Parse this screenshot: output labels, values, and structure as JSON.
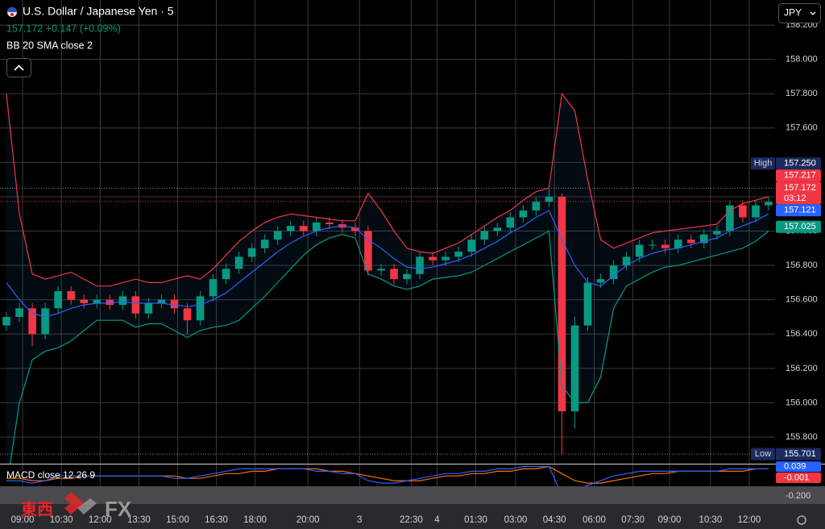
{
  "chart_data": {
    "type": "candlestick",
    "title": "U.S. Dollar / Japanese Yen · 5",
    "subtitle": "157.172 +0.147 (+0.09%)",
    "indicator": "BB 20 SMA close 2",
    "currency": "JPY",
    "watermark": [
      "東西",
      "FX"
    ],
    "colors": {
      "up": "#089981",
      "down": "#f23645"
    },
    "x": [
      3,
      9,
      15,
      21,
      27,
      33,
      39,
      45,
      51,
      57,
      63,
      69,
      75,
      81,
      87,
      93,
      99,
      105,
      111,
      117,
      123,
      129,
      135,
      141,
      147,
      153,
      159,
      165,
      171,
      177,
      183,
      189,
      195,
      201,
      207,
      213,
      219,
      225,
      231,
      237,
      243,
      249,
      255,
      261,
      267,
      273,
      279,
      285,
      291,
      297,
      303,
      309,
      315,
      321,
      327,
      333,
      339,
      345,
      351,
      357
    ],
    "open": [
      156.45,
      156.5,
      156.55,
      156.4,
      156.55,
      156.65,
      156.6,
      156.58,
      156.6,
      156.57,
      156.62,
      156.52,
      156.58,
      156.6,
      156.55,
      156.48,
      156.62,
      156.72,
      156.78,
      156.85,
      156.9,
      156.95,
      157.0,
      157.03,
      157.0,
      157.05,
      157.04,
      157.02,
      157.0,
      156.77,
      156.78,
      156.72,
      156.75,
      156.85,
      156.83,
      156.85,
      156.88,
      156.95,
      157.0,
      157.02,
      157.08,
      157.12,
      157.17,
      157.2,
      155.95,
      156.45,
      156.7,
      156.72,
      156.8,
      156.85,
      156.92,
      156.92,
      156.9,
      156.95,
      156.93,
      156.98,
      157.0,
      157.15,
      157.08,
      157.15
    ],
    "high": [
      156.53,
      156.58,
      156.58,
      156.58,
      156.68,
      156.68,
      156.63,
      156.63,
      156.63,
      156.65,
      156.65,
      156.61,
      156.63,
      156.63,
      156.58,
      156.65,
      156.75,
      156.81,
      156.88,
      156.93,
      156.98,
      157.03,
      157.06,
      157.06,
      157.08,
      157.08,
      157.07,
      157.05,
      157.03,
      156.81,
      156.81,
      156.78,
      156.88,
      156.88,
      156.88,
      156.91,
      156.98,
      157.03,
      157.05,
      157.11,
      157.15,
      157.2,
      157.25,
      157.22,
      156.5,
      156.73,
      156.75,
      156.83,
      156.88,
      156.95,
      156.95,
      156.95,
      156.98,
      156.98,
      157.01,
      157.03,
      157.18,
      157.18,
      157.18,
      157.2
    ],
    "low": [
      156.42,
      156.47,
      156.33,
      156.37,
      156.52,
      156.57,
      156.55,
      156.55,
      156.54,
      156.54,
      156.49,
      156.49,
      156.55,
      156.52,
      156.4,
      156.45,
      156.59,
      156.69,
      156.75,
      156.82,
      156.87,
      156.92,
      156.97,
      156.97,
      156.97,
      157.01,
      156.99,
      156.97,
      156.74,
      156.74,
      156.69,
      156.69,
      156.72,
      156.8,
      156.8,
      156.82,
      156.85,
      156.92,
      156.97,
      156.99,
      157.05,
      157.09,
      157.14,
      155.7,
      155.85,
      156.42,
      156.67,
      156.69,
      156.77,
      156.82,
      156.89,
      156.87,
      156.87,
      156.9,
      156.9,
      156.95,
      156.97,
      157.05,
      157.05,
      157.12
    ],
    "close": [
      156.5,
      156.55,
      156.4,
      156.55,
      156.65,
      156.6,
      156.58,
      156.6,
      156.57,
      156.62,
      156.52,
      156.58,
      156.6,
      156.55,
      156.48,
      156.62,
      156.72,
      156.78,
      156.85,
      156.9,
      156.95,
      157.0,
      157.03,
      157.0,
      157.05,
      157.04,
      157.02,
      157.0,
      156.77,
      156.78,
      156.72,
      156.75,
      156.85,
      156.83,
      156.85,
      156.88,
      156.95,
      157.0,
      157.02,
      157.08,
      157.12,
      157.17,
      157.2,
      155.95,
      156.45,
      156.7,
      156.72,
      156.8,
      156.85,
      156.92,
      156.92,
      156.9,
      156.95,
      156.93,
      156.98,
      157.0,
      157.15,
      157.08,
      157.15,
      157.17
    ],
    "bands": {
      "colors": {
        "upper": "#f23645",
        "middle": "#2962ff",
        "lower": "#089981",
        "fill": "#2196f3"
      },
      "upper": [
        157.8,
        157.1,
        156.75,
        156.72,
        156.74,
        156.76,
        156.72,
        156.68,
        156.68,
        156.7,
        156.72,
        156.7,
        156.7,
        156.72,
        156.74,
        156.72,
        156.78,
        156.86,
        156.94,
        157.0,
        157.05,
        157.08,
        157.1,
        157.09,
        157.08,
        157.07,
        157.06,
        157.06,
        157.22,
        157.12,
        157.0,
        156.9,
        156.88,
        156.87,
        156.9,
        156.93,
        156.98,
        157.03,
        157.08,
        157.12,
        157.18,
        157.23,
        157.25,
        157.8,
        157.7,
        157.3,
        156.95,
        156.9,
        156.93,
        156.96,
        156.99,
        157.0,
        157.01,
        157.02,
        157.03,
        157.04,
        157.12,
        157.16,
        157.18,
        157.2
      ],
      "middle": [
        156.7,
        156.6,
        156.52,
        156.5,
        156.52,
        156.55,
        156.57,
        156.58,
        156.58,
        156.59,
        156.58,
        156.58,
        156.58,
        156.57,
        156.56,
        156.57,
        156.6,
        156.64,
        156.7,
        156.76,
        156.82,
        156.88,
        156.93,
        156.97,
        157.0,
        157.02,
        157.03,
        157.02,
        156.95,
        156.9,
        156.84,
        156.79,
        156.78,
        156.79,
        156.81,
        156.83,
        156.86,
        156.9,
        156.94,
        156.99,
        157.03,
        157.08,
        157.12,
        156.95,
        156.8,
        156.7,
        156.68,
        156.74,
        156.8,
        156.84,
        156.87,
        156.89,
        156.9,
        156.92,
        156.94,
        156.96,
        157.0,
        157.03,
        157.06,
        157.1
      ],
      "lower": [
        155.5,
        156.0,
        156.25,
        156.3,
        156.32,
        156.36,
        156.42,
        156.48,
        156.48,
        156.48,
        156.44,
        156.46,
        156.46,
        156.42,
        156.38,
        156.42,
        156.44,
        156.45,
        156.48,
        156.55,
        156.62,
        156.7,
        156.78,
        156.86,
        156.92,
        156.96,
        156.98,
        156.96,
        156.75,
        156.72,
        156.68,
        156.66,
        156.68,
        156.72,
        156.73,
        156.74,
        156.76,
        156.8,
        156.84,
        156.88,
        156.92,
        156.96,
        157.0,
        156.1,
        156.0,
        156.0,
        156.15,
        156.55,
        156.68,
        156.72,
        156.76,
        156.79,
        156.8,
        156.82,
        156.84,
        156.86,
        156.88,
        156.9,
        156.94,
        157.0
      ]
    },
    "xlim": [
      0,
      360
    ],
    "xticks": [
      {
        "value": 10.5,
        "label": "09:00"
      },
      {
        "value": 28.5,
        "label": "10:30"
      },
      {
        "value": 46.5,
        "label": "12:00"
      },
      {
        "value": 64.5,
        "label": "13:30"
      },
      {
        "value": 82.5,
        "label": "15:00"
      },
      {
        "value": 100.5,
        "label": "16:30"
      },
      {
        "value": 118.5,
        "label": "18:00"
      },
      {
        "value": 143,
        "label": "20:00"
      },
      {
        "value": 167,
        "label": "3"
      },
      {
        "value": 191,
        "label": "22:30"
      },
      {
        "value": 203,
        "label": "4"
      },
      {
        "value": 221,
        "label": "01:30"
      },
      {
        "value": 239.5,
        "label": "03:00"
      },
      {
        "value": 257.5,
        "label": "04:30"
      },
      {
        "value": 276,
        "label": "06:00"
      },
      {
        "value": 294,
        "label": "07:30"
      },
      {
        "value": 311,
        "label": "09:00"
      },
      {
        "value": 330,
        "label": "10:30"
      },
      {
        "value": 348,
        "label": "12:00"
      }
    ],
    "ylim": [
      155.645,
      158.346
    ],
    "yticks": [
      {
        "value": 155.8,
        "label": "155.800"
      },
      {
        "value": 156,
        "label": "156.000"
      },
      {
        "value": 156.2,
        "label": "156.200"
      },
      {
        "value": 156.4,
        "label": "156.400"
      },
      {
        "value": 156.6,
        "label": "156.600"
      },
      {
        "value": 156.8,
        "label": "156.800"
      },
      {
        "value": 157,
        "label": "157.000"
      },
      {
        "value": 157.2,
        "label": "157.200"
      },
      {
        "value": 157.4,
        "label": "157.400"
      },
      {
        "value": 157.6,
        "label": "157.600"
      },
      {
        "value": 157.8,
        "label": "157.800"
      },
      {
        "value": 158,
        "label": "158.000"
      },
      {
        "value": 158.2,
        "label": "158.200"
      }
    ],
    "grid": true,
    "markers": [
      {
        "name": "High",
        "value": 157.25,
        "label": "157.250",
        "color": "#1c2a5c"
      },
      {
        "value": 157.217,
        "label": "157.217",
        "color": "#f23645"
      },
      {
        "value": 157.172,
        "label": "157.172",
        "sublabel": "03:12",
        "color": "#f23645"
      },
      {
        "value": 157.121,
        "label": "157.121",
        "color": "#2962ff"
      },
      {
        "value": 157.025,
        "label": "157.025",
        "color": "#089981"
      },
      {
        "name": "Low",
        "value": 155.701,
        "label": "155.701",
        "color": "#1c2a5c"
      }
    ],
    "macd": {
      "title": "MACD close 12 26 9",
      "ylim": [
        -0.04,
        0.045
      ],
      "macd_color": "#2962ff",
      "signal_color": "#ff6d00",
      "macd": [
        -0.02,
        -0.02,
        -0.03,
        -0.02,
        0.0,
        0.0,
        0.0,
        0.0,
        0.0,
        0.0,
        0.0,
        0.0,
        0.0,
        -0.01,
        -0.01,
        0.0,
        0.01,
        0.02,
        0.03,
        0.03,
        0.03,
        0.03,
        0.03,
        0.03,
        0.02,
        0.02,
        0.01,
        0.01,
        -0.02,
        -0.03,
        -0.03,
        -0.02,
        -0.01,
        0.0,
        0.01,
        0.01,
        0.02,
        0.02,
        0.03,
        0.03,
        0.04,
        0.04,
        0.04,
        -0.08,
        -0.06,
        -0.04,
        -0.02,
        0.0,
        0.01,
        0.02,
        0.02,
        0.02,
        0.02,
        0.02,
        0.02,
        0.02,
        0.03,
        0.03,
        0.03,
        0.03
      ],
      "signal": [
        -0.01,
        -0.01,
        -0.02,
        -0.02,
        -0.01,
        -0.01,
        0.0,
        0.0,
        0.0,
        0.0,
        0.0,
        0.0,
        0.0,
        0.0,
        -0.01,
        -0.01,
        0.0,
        0.01,
        0.01,
        0.02,
        0.02,
        0.03,
        0.03,
        0.03,
        0.03,
        0.02,
        0.02,
        0.01,
        0.0,
        -0.01,
        -0.02,
        -0.02,
        -0.02,
        -0.01,
        0.0,
        0.0,
        0.01,
        0.01,
        0.02,
        0.02,
        0.03,
        0.03,
        0.04,
        0.01,
        -0.02,
        -0.03,
        -0.03,
        -0.02,
        -0.01,
        0.0,
        0.01,
        0.01,
        0.02,
        0.02,
        0.02,
        0.02,
        0.02,
        0.02,
        0.03,
        0.03
      ],
      "markers": [
        {
          "value": 0.039,
          "label": "0.039",
          "color": "#2962ff"
        },
        {
          "value": -0.001,
          "label": "-0.001",
          "color": "#f23645"
        }
      ],
      "axis_label": "-0.200"
    }
  }
}
